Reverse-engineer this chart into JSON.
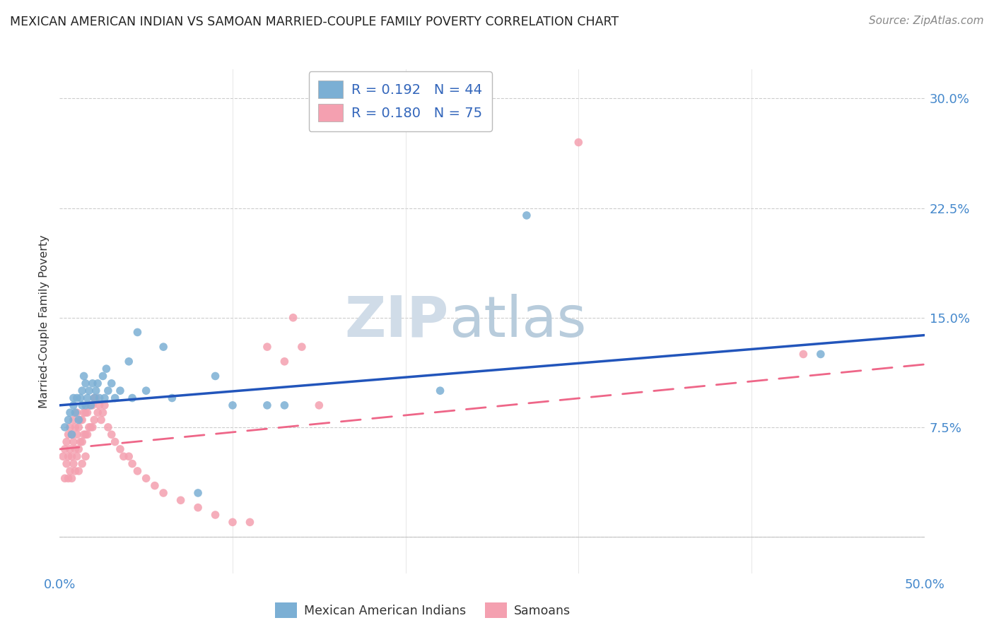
{
  "title": "MEXICAN AMERICAN INDIAN VS SAMOAN MARRIED-COUPLE FAMILY POVERTY CORRELATION CHART",
  "source": "Source: ZipAtlas.com",
  "ylabel": "Married-Couple Family Poverty",
  "xlim": [
    0.0,
    0.5
  ],
  "ylim": [
    -0.025,
    0.32
  ],
  "xtick_positions": [
    0.0,
    0.1,
    0.2,
    0.3,
    0.4,
    0.5
  ],
  "xticklabels": [
    "0.0%",
    "",
    "",
    "",
    "",
    "50.0%"
  ],
  "ytick_positions": [
    0.0,
    0.075,
    0.15,
    0.225,
    0.3
  ],
  "ytick_labels": [
    "",
    "7.5%",
    "15.0%",
    "22.5%",
    "30.0%"
  ],
  "R_blue": 0.192,
  "N_blue": 44,
  "R_pink": 0.18,
  "N_pink": 75,
  "color_blue": "#7BAFD4",
  "color_pink": "#F4A0B0",
  "line_blue": "#2255BB",
  "line_pink": "#EE6688",
  "watermark_zip": "ZIP",
  "watermark_atlas": "atlas",
  "watermark_color_zip": "#D0DCE8",
  "watermark_color_atlas": "#B8CCDC",
  "blue_line_x0": 0.0,
  "blue_line_y0": 0.09,
  "blue_line_x1": 0.5,
  "blue_line_y1": 0.138,
  "pink_line_x0": 0.0,
  "pink_line_y0": 0.06,
  "pink_line_x1": 0.5,
  "pink_line_y1": 0.118,
  "blue_x": [
    0.003,
    0.005,
    0.006,
    0.007,
    0.008,
    0.008,
    0.009,
    0.01,
    0.011,
    0.012,
    0.013,
    0.013,
    0.014,
    0.015,
    0.015,
    0.016,
    0.017,
    0.018,
    0.019,
    0.02,
    0.021,
    0.022,
    0.023,
    0.025,
    0.026,
    0.027,
    0.028,
    0.03,
    0.032,
    0.035,
    0.04,
    0.042,
    0.045,
    0.05,
    0.06,
    0.065,
    0.08,
    0.09,
    0.1,
    0.12,
    0.13,
    0.22,
    0.27,
    0.44
  ],
  "blue_y": [
    0.075,
    0.08,
    0.085,
    0.07,
    0.09,
    0.095,
    0.085,
    0.095,
    0.08,
    0.095,
    0.09,
    0.1,
    0.11,
    0.09,
    0.105,
    0.095,
    0.1,
    0.09,
    0.105,
    0.095,
    0.1,
    0.105,
    0.095,
    0.11,
    0.095,
    0.115,
    0.1,
    0.105,
    0.095,
    0.1,
    0.12,
    0.095,
    0.14,
    0.1,
    0.13,
    0.095,
    0.03,
    0.11,
    0.09,
    0.09,
    0.09,
    0.1,
    0.22,
    0.125
  ],
  "pink_x": [
    0.002,
    0.003,
    0.003,
    0.004,
    0.004,
    0.005,
    0.005,
    0.005,
    0.006,
    0.006,
    0.006,
    0.007,
    0.007,
    0.007,
    0.008,
    0.008,
    0.008,
    0.009,
    0.009,
    0.009,
    0.01,
    0.01,
    0.01,
    0.011,
    0.011,
    0.011,
    0.012,
    0.012,
    0.013,
    0.013,
    0.013,
    0.014,
    0.014,
    0.015,
    0.015,
    0.015,
    0.016,
    0.016,
    0.017,
    0.017,
    0.018,
    0.018,
    0.019,
    0.019,
    0.02,
    0.02,
    0.021,
    0.022,
    0.023,
    0.024,
    0.025,
    0.026,
    0.028,
    0.03,
    0.032,
    0.035,
    0.037,
    0.04,
    0.042,
    0.045,
    0.05,
    0.055,
    0.06,
    0.07,
    0.08,
    0.09,
    0.1,
    0.11,
    0.12,
    0.13,
    0.135,
    0.14,
    0.15,
    0.3,
    0.43
  ],
  "pink_y": [
    0.055,
    0.06,
    0.04,
    0.065,
    0.05,
    0.07,
    0.055,
    0.04,
    0.075,
    0.06,
    0.045,
    0.07,
    0.055,
    0.04,
    0.08,
    0.065,
    0.05,
    0.075,
    0.06,
    0.045,
    0.085,
    0.07,
    0.055,
    0.075,
    0.06,
    0.045,
    0.08,
    0.065,
    0.08,
    0.065,
    0.05,
    0.085,
    0.07,
    0.085,
    0.07,
    0.055,
    0.085,
    0.07,
    0.09,
    0.075,
    0.09,
    0.075,
    0.09,
    0.075,
    0.095,
    0.08,
    0.095,
    0.085,
    0.09,
    0.08,
    0.085,
    0.09,
    0.075,
    0.07,
    0.065,
    0.06,
    0.055,
    0.055,
    0.05,
    0.045,
    0.04,
    0.035,
    0.03,
    0.025,
    0.02,
    0.015,
    0.01,
    0.01,
    0.13,
    0.12,
    0.15,
    0.13,
    0.09,
    0.27,
    0.125
  ]
}
